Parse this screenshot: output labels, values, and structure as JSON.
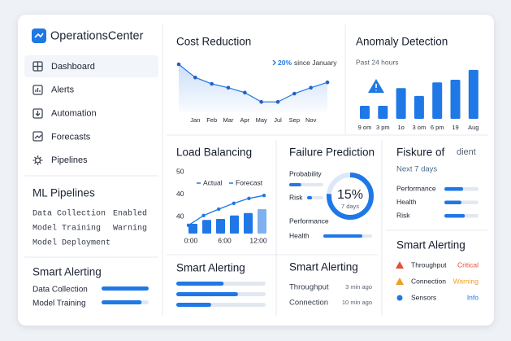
{
  "sidebar": {
    "brand": "OperationsCenter",
    "nav": [
      "Dashboard",
      "Alerts",
      "Automation",
      "Forecasts",
      "Pipelines"
    ],
    "ml_title": "ML Pipelines",
    "ml_rows": [
      [
        "Data Collection",
        "Enabled"
      ],
      [
        "Model Training",
        "Warning"
      ],
      [
        "Model Deployment",
        null
      ]
    ],
    "alert_title": "Smart Alerting",
    "alert_rows": [
      {
        "label": "Data Collection",
        "value": 100
      },
      {
        "label": "Model Training",
        "value": 85
      }
    ]
  },
  "cost": {
    "title": "Cost Reduction",
    "change": "20%",
    "change_text": "since January",
    "months": [
      null,
      "Jan",
      "Feb",
      "Mar",
      "Apr",
      "May",
      "Jul",
      "Sep",
      "Nov",
      null
    ],
    "values": [
      85,
      58,
      45,
      37,
      27,
      8,
      8,
      25,
      37,
      48
    ]
  },
  "anomaly": {
    "title": "Anomaly Detection",
    "subtitle": "Past 24 hours",
    "labels": [
      "9 om",
      "3 pm",
      "1o",
      "3 om",
      "6 pm",
      "19",
      "Aug"
    ],
    "values": [
      25,
      25,
      59,
      44,
      70,
      75,
      94
    ]
  },
  "load": {
    "title": "Load Balancing",
    "yticks": [
      "50",
      "40",
      "40"
    ],
    "legend": [
      "Actual",
      "Forecast"
    ],
    "xlabels": [
      "0:00",
      "6:00",
      "12:00"
    ],
    "bars": [
      20,
      28,
      30,
      37,
      42,
      50
    ],
    "line": [
      17,
      37,
      50,
      62,
      72,
      78
    ]
  },
  "failure": {
    "title": "Failure Prediction",
    "rows": [
      {
        "label": "Probability",
        "value": 35
      },
      {
        "label": "Risk",
        "value": 30
      },
      {
        "label": "Performance",
        "value": null
      },
      {
        "label": "Health",
        "value": 80
      }
    ],
    "percent": "15%",
    "days": "7 days"
  },
  "forecast": {
    "title": "Fiskure of",
    "aside": "dient",
    "subtitle": "Next 7 days",
    "rows": [
      {
        "label": "Performance",
        "value": 55
      },
      {
        "label": "Health",
        "value": 50
      },
      {
        "label": "Risk",
        "value": 60
      }
    ]
  },
  "alert_status": {
    "title": "Smart Alerting",
    "rows": [
      {
        "label": "Throughput",
        "status": "Critical"
      },
      {
        "label": "Connection",
        "status": "Warning"
      },
      {
        "label": "Sensors",
        "status": "Info"
      }
    ]
  },
  "alert_bars": {
    "title": "Smart Alerting",
    "values": [
      53,
      69,
      39
    ]
  },
  "alert_feed": {
    "title": "Smart Alerting",
    "rows": [
      {
        "label": "Throughput",
        "time": "3 min ago"
      },
      {
        "label": "Connection",
        "time": "10 min ago"
      }
    ]
  }
}
